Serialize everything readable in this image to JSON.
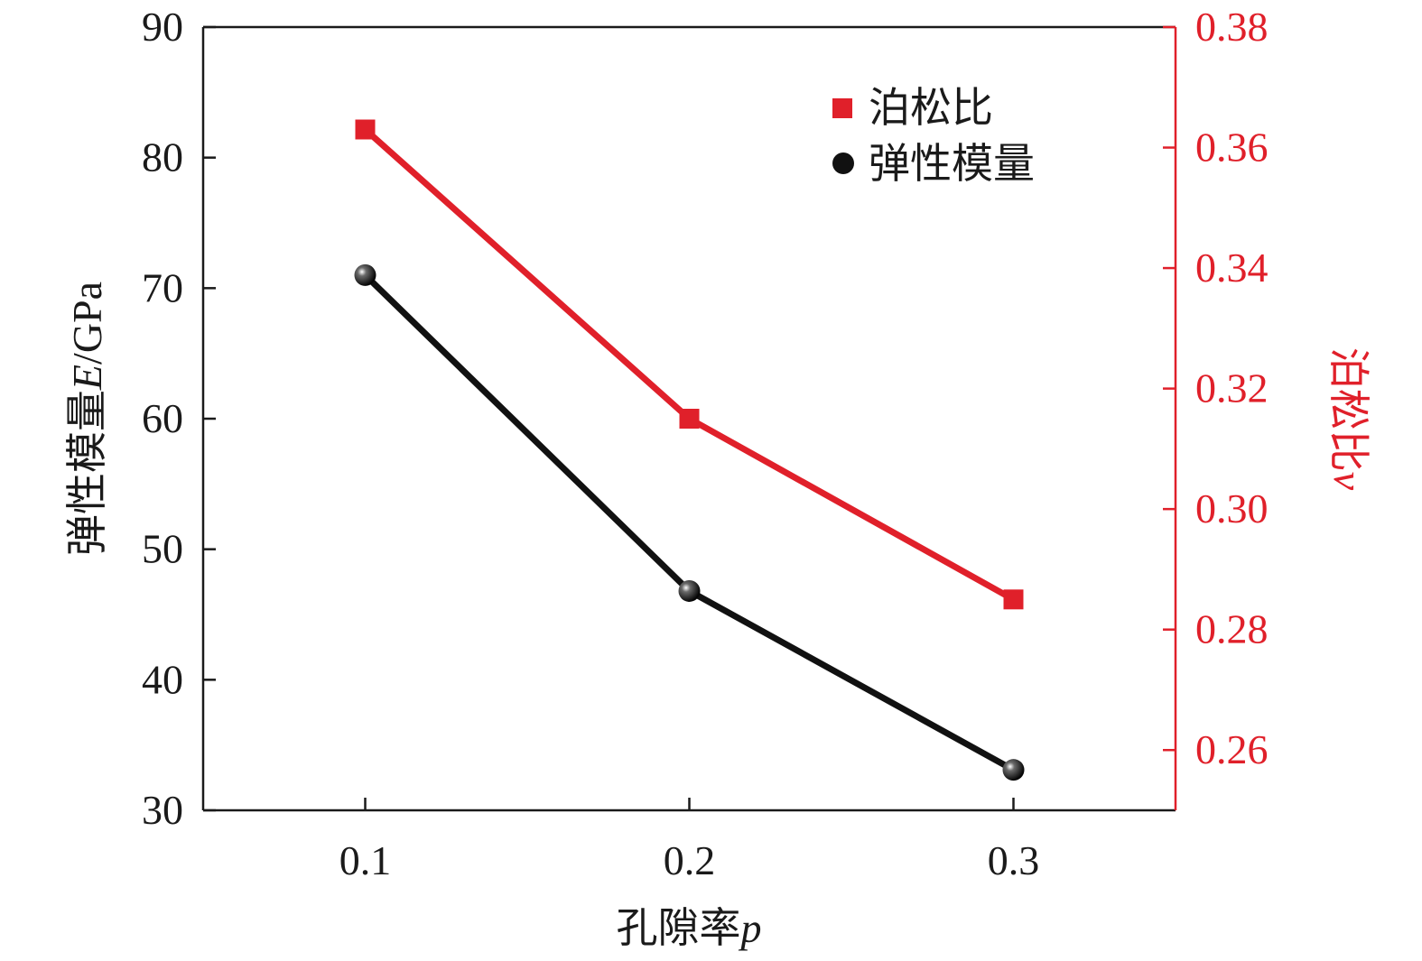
{
  "chart_data": {
    "type": "line",
    "x": [
      0.1,
      0.2,
      0.3
    ],
    "xlim": [
      0.05,
      0.35
    ],
    "x_ticks": [
      "0.1",
      "0.2",
      "0.3"
    ],
    "xlabel": "孔隙率",
    "xlabel_var": "p",
    "y_left": {
      "label": "弹性模量",
      "label_var": "E",
      "label_unit": "/GPa",
      "lim": [
        30,
        90
      ],
      "ticks": [
        "30",
        "40",
        "50",
        "60",
        "70",
        "80",
        "90"
      ],
      "color": "#1a1a1a"
    },
    "y_right": {
      "label": "泊松比",
      "label_var": "v",
      "lim": [
        0.25,
        0.38
      ],
      "ticks": [
        "0.26",
        "0.28",
        "0.30",
        "0.32",
        "0.34",
        "0.36",
        "0.38"
      ],
      "color": "#e0202a"
    },
    "series": [
      {
        "name": "泊松比",
        "axis": "right",
        "marker": "square",
        "color": "#e0202a",
        "values": [
          0.363,
          0.315,
          0.285
        ]
      },
      {
        "name": "弹性模量",
        "axis": "left",
        "marker": "circle",
        "color": "#111111",
        "values": [
          71.0,
          46.8,
          33.1
        ]
      }
    ],
    "legend_position": "top-right",
    "grid": false
  }
}
